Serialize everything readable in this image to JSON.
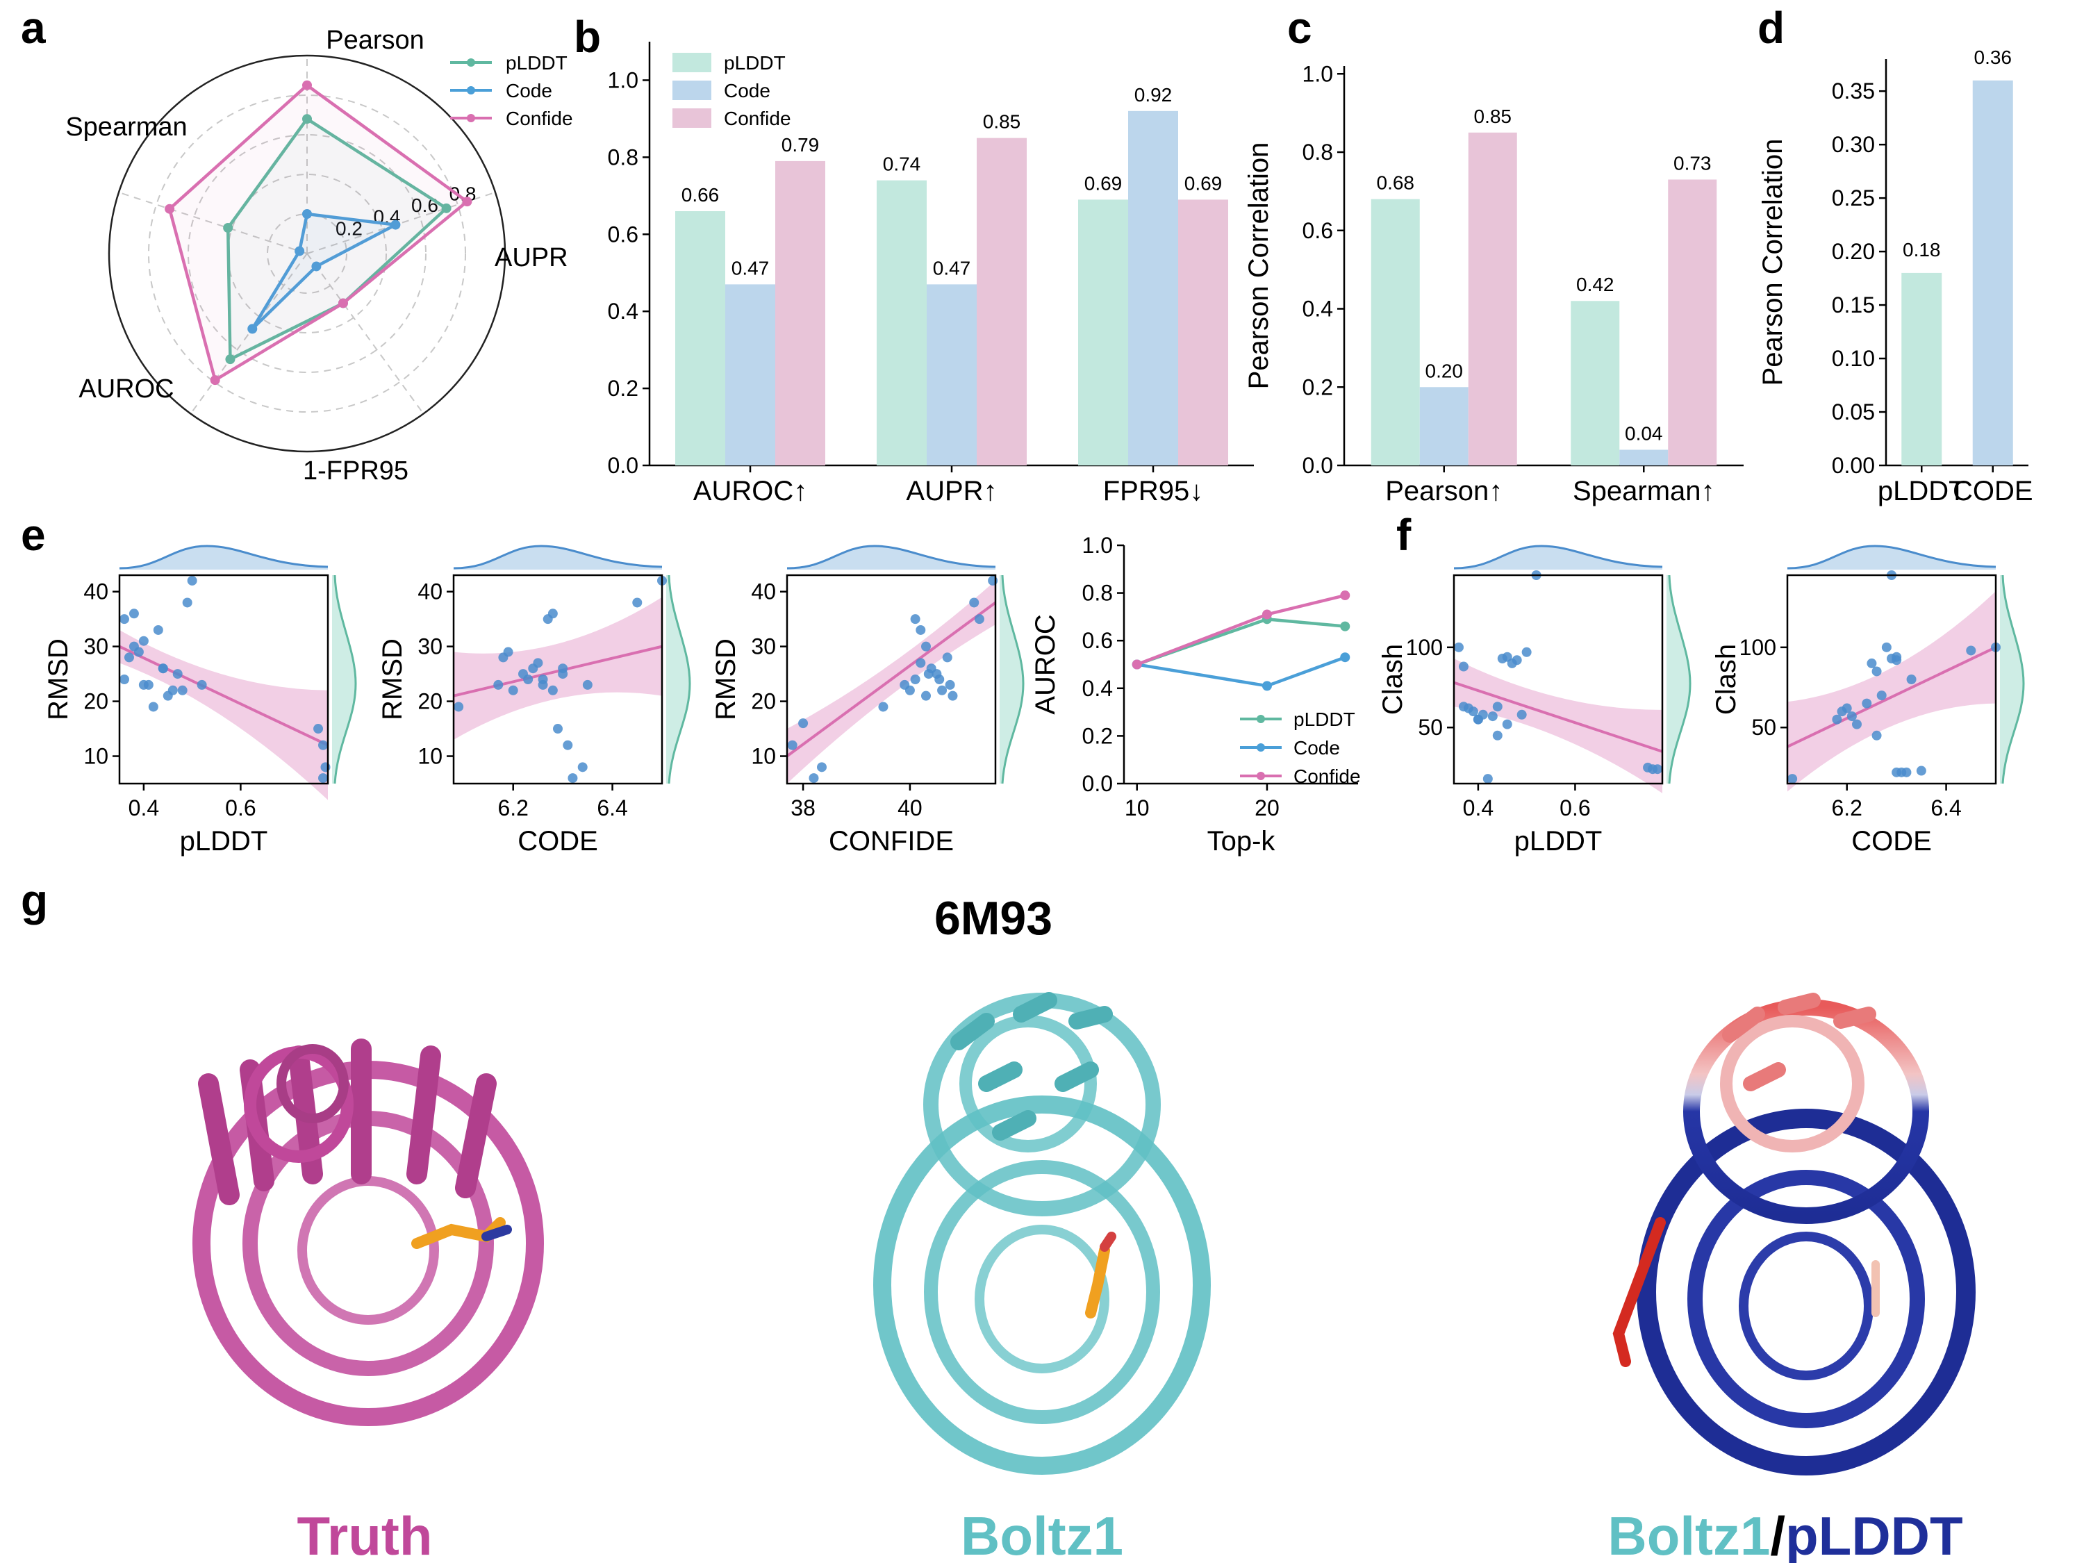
{
  "colors": {
    "plddt": "#5fb8a0",
    "code": "#4a9fd8",
    "confide": "#d96fb0",
    "bar_plddt": "#c2e8de",
    "bar_code": "#bcd6ec",
    "bar_confide": "#e8c4d8",
    "truth": "#c0489a",
    "boltz": "#60c0c4",
    "plddt_dark": "#1f2f9a",
    "scatter": "#4a8ccc"
  },
  "panel_labels": [
    "a",
    "b",
    "c",
    "d",
    "e",
    "f",
    "g"
  ],
  "legend": [
    "pLDDT",
    "Code",
    "Confide"
  ],
  "chart_data": [
    {
      "panel": "a",
      "type": "radar",
      "axes": [
        "Pearson",
        "AUPR",
        "1-FPR95",
        "AUROC",
        "Spearman"
      ],
      "rlim": [
        0,
        1
      ],
      "rticks": [
        "0.2",
        "0.4",
        "0.6",
        "0.8"
      ],
      "series": [
        {
          "name": "pLDDT",
          "values": [
            0.68,
            0.74,
            0.31,
            0.66,
            0.42
          ]
        },
        {
          "name": "Code",
          "values": [
            0.2,
            0.47,
            0.08,
            0.47,
            0.04
          ]
        },
        {
          "name": "Confide",
          "values": [
            0.85,
            0.85,
            0.31,
            0.79,
            0.73
          ]
        }
      ]
    },
    {
      "panel": "b",
      "type": "bar",
      "categories": [
        "AUROC↑",
        "AUPR↑",
        "FPR95↓"
      ],
      "ylim": [
        0,
        1.1
      ],
      "yticks": [
        "0.0",
        "0.2",
        "0.4",
        "0.6",
        "0.8",
        "1.0"
      ],
      "series": [
        {
          "name": "pLDDT",
          "values": [
            0.66,
            0.74,
            0.69
          ],
          "labels": [
            "0.66",
            "0.74",
            "0.69"
          ]
        },
        {
          "name": "Code",
          "values": [
            0.47,
            0.47,
            0.92
          ],
          "labels": [
            "0.47",
            "0.47",
            "0.92"
          ]
        },
        {
          "name": "Confide",
          "values": [
            0.79,
            0.85,
            0.69
          ],
          "labels": [
            "0.79",
            "0.85",
            "0.69"
          ]
        }
      ]
    },
    {
      "panel": "c",
      "type": "bar",
      "categories": [
        "Pearson↑",
        "Spearman↑"
      ],
      "ylabel": "Pearson Correlation",
      "ylim": [
        0,
        1.02
      ],
      "yticks": [
        "0.0",
        "0.2",
        "0.4",
        "0.6",
        "0.8",
        "1.0"
      ],
      "series": [
        {
          "name": "pLDDT",
          "values": [
            0.68,
            0.42
          ],
          "labels": [
            "0.68",
            "0.42"
          ]
        },
        {
          "name": "Code",
          "values": [
            0.2,
            0.04
          ],
          "labels": [
            "0.20",
            "0.04"
          ]
        },
        {
          "name": "Confide",
          "values": [
            0.85,
            0.73
          ],
          "labels": [
            "0.85",
            "0.73"
          ]
        }
      ]
    },
    {
      "panel": "d",
      "type": "bar",
      "categories": [
        "pLDDT",
        "CODE"
      ],
      "ylabel": "Pearson Correlation",
      "ylim": [
        0,
        0.38
      ],
      "yticks": [
        "0.00",
        "0.05",
        "0.10",
        "0.15",
        "0.20",
        "0.25",
        "0.30",
        "0.35"
      ],
      "values": [
        0.18,
        0.36
      ],
      "labels": [
        "0.18",
        "0.36"
      ]
    },
    {
      "panel": "e1",
      "type": "scatter",
      "xlabel": "pLDDT",
      "ylabel": "RMSD",
      "xlim": [
        0.35,
        0.78
      ],
      "ylim": [
        5,
        43
      ],
      "xticks": [
        "0.4",
        "0.6"
      ],
      "yticks": [
        "10",
        "20",
        "30",
        "40"
      ],
      "x": [
        0.36,
        0.37,
        0.36,
        0.38,
        0.39,
        0.4,
        0.41,
        0.42,
        0.43,
        0.44,
        0.45,
        0.46,
        0.47,
        0.48,
        0.49,
        0.5,
        0.52,
        0.38,
        0.4,
        0.44,
        0.76,
        0.77,
        0.775,
        0.77
      ],
      "y": [
        35,
        28,
        24,
        30,
        29,
        23,
        23,
        19,
        33,
        26,
        21,
        22,
        25,
        22,
        38,
        42,
        23,
        36,
        31,
        26,
        15,
        12,
        8,
        6
      ],
      "fit": [
        0.35,
        30,
        0.78,
        12
      ],
      "band_halfwidth": [
        3,
        2,
        10
      ]
    },
    {
      "panel": "e2",
      "type": "scatter",
      "xlabel": "CODE",
      "ylabel": "RMSD",
      "xlim": [
        6.08,
        6.5
      ],
      "ylim": [
        5,
        43
      ],
      "xticks": [
        "6.2",
        "6.4"
      ],
      "yticks": [
        "10",
        "20",
        "30",
        "40"
      ],
      "x": [
        6.09,
        6.17,
        6.18,
        6.19,
        6.2,
        6.22,
        6.23,
        6.24,
        6.25,
        6.26,
        6.27,
        6.28,
        6.28,
        6.29,
        6.3,
        6.31,
        6.32,
        6.34,
        6.35,
        6.45,
        6.5,
        6.3,
        6.26
      ],
      "y": [
        19,
        23,
        28,
        29,
        22,
        25,
        24,
        26,
        27,
        24,
        35,
        36,
        22,
        15,
        26,
        12,
        6,
        8,
        23,
        38,
        42,
        25,
        23
      ],
      "fit": [
        6.08,
        21,
        6.5,
        30
      ],
      "band_halfwidth": [
        8,
        2.5,
        9
      ]
    },
    {
      "panel": "e3",
      "type": "scatter",
      "xlabel": "CONFIDE",
      "ylabel": "RMSD",
      "xlim": [
        37.7,
        41.6
      ],
      "ylim": [
        5,
        43
      ],
      "xticks": [
        "38",
        "40"
      ],
      "yticks": [
        "10",
        "20",
        "30",
        "40"
      ],
      "x": [
        37.8,
        38.0,
        38.2,
        38.35,
        39.5,
        39.9,
        40.0,
        40.1,
        40.2,
        40.3,
        40.35,
        40.4,
        40.5,
        40.55,
        40.6,
        40.7,
        40.75,
        40.8,
        40.1,
        40.2,
        40.3,
        41.2,
        41.3,
        41.55
      ],
      "y": [
        12,
        16,
        6,
        8,
        19,
        23,
        22,
        24,
        27,
        21,
        25,
        26,
        25,
        24,
        22,
        28,
        23,
        21,
        35,
        33,
        30,
        38,
        35,
        42
      ],
      "fit": [
        37.7,
        10,
        41.6,
        38
      ],
      "band_halfwidth": [
        5,
        2,
        4
      ]
    },
    {
      "panel": "e4",
      "type": "line",
      "xlabel": "Top-k",
      "ylabel": "AUROC",
      "xlim": [
        9,
        27
      ],
      "ylim": [
        0,
        1
      ],
      "xticks": [
        "10",
        "20"
      ],
      "yticks": [
        "0.0",
        "0.2",
        "0.4",
        "0.6",
        "0.8",
        "1.0"
      ],
      "x": [
        10,
        20,
        26
      ],
      "series": [
        {
          "name": "pLDDT",
          "values": [
            0.5,
            0.69,
            0.66
          ]
        },
        {
          "name": "Code",
          "values": [
            0.5,
            0.41,
            0.53
          ]
        },
        {
          "name": "Confide",
          "values": [
            0.5,
            0.71,
            0.79
          ]
        }
      ]
    },
    {
      "panel": "f1",
      "type": "scatter",
      "xlabel": "pLDDT",
      "ylabel": "Clash",
      "xlim": [
        0.35,
        0.78
      ],
      "ylim": [
        15,
        145
      ],
      "xticks": [
        "0.4",
        "0.6"
      ],
      "yticks": [
        "50",
        "100"
      ],
      "x": [
        0.36,
        0.37,
        0.37,
        0.38,
        0.39,
        0.4,
        0.41,
        0.42,
        0.43,
        0.44,
        0.45,
        0.46,
        0.47,
        0.48,
        0.49,
        0.44,
        0.46,
        0.5,
        0.52,
        0.4,
        0.75,
        0.76,
        0.77
      ],
      "y": [
        100,
        88,
        63,
        62,
        60,
        55,
        58,
        18,
        57,
        63,
        93,
        94,
        90,
        92,
        58,
        45,
        52,
        97,
        145,
        55,
        25,
        24,
        24
      ],
      "fit": [
        0.35,
        78,
        0.78,
        35
      ],
      "band_halfwidth": [
        15,
        7,
        26
      ]
    },
    {
      "panel": "f2",
      "type": "scatter",
      "xlabel": "CODE",
      "ylabel": "Clash",
      "xlim": [
        6.08,
        6.5
      ],
      "ylim": [
        15,
        145
      ],
      "xticks": [
        "6.2",
        "6.4"
      ],
      "yticks": [
        "50",
        "100"
      ],
      "x": [
        6.09,
        6.18,
        6.19,
        6.2,
        6.21,
        6.22,
        6.24,
        6.25,
        6.26,
        6.27,
        6.28,
        6.29,
        6.3,
        6.31,
        6.32,
        6.33,
        6.35,
        6.29,
        6.3,
        6.45,
        6.5,
        6.26,
        6.3
      ],
      "y": [
        18,
        55,
        60,
        62,
        57,
        52,
        65,
        90,
        85,
        70,
        100,
        93,
        92,
        22,
        22,
        80,
        23,
        145,
        94,
        98,
        100,
        45,
        22
      ],
      "fit": [
        6.08,
        38,
        6.5,
        100
      ],
      "band_halfwidth": [
        28,
        8,
        35
      ]
    }
  ],
  "structure": {
    "title": "6M93",
    "captions": {
      "truth": "Truth",
      "boltz": "Boltz1",
      "boltz_plddt_a": "Boltz1",
      "slash": "/",
      "boltz_plddt_b": "pLDDT"
    }
  }
}
